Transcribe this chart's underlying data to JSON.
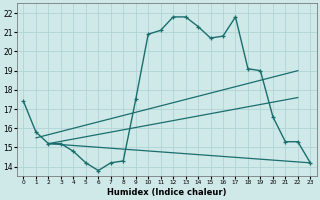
{
  "xlabel": "Humidex (Indice chaleur)",
  "xlim": [
    -0.5,
    23.5
  ],
  "ylim": [
    13.5,
    22.5
  ],
  "yticks": [
    14,
    15,
    16,
    17,
    18,
    19,
    20,
    21,
    22
  ],
  "xticks": [
    0,
    1,
    2,
    3,
    4,
    5,
    6,
    7,
    8,
    9,
    10,
    11,
    12,
    13,
    14,
    15,
    16,
    17,
    18,
    19,
    20,
    21,
    22,
    23
  ],
  "background_color": "#cfe8e8",
  "grid_color": "#b0d4d4",
  "line_color": "#1a6e6e",
  "main_x": [
    0,
    1,
    2,
    3,
    4,
    5,
    6,
    7,
    8,
    9,
    10,
    11,
    12,
    13,
    14,
    15,
    16,
    17,
    18,
    19,
    20,
    21,
    22,
    23
  ],
  "main_y": [
    17.4,
    15.8,
    15.2,
    15.2,
    14.8,
    14.2,
    13.8,
    14.2,
    14.3,
    17.5,
    20.9,
    21.1,
    21.8,
    21.8,
    21.3,
    20.7,
    20.8,
    21.8,
    19.1,
    19.0,
    16.6,
    15.3,
    15.3,
    14.2
  ],
  "trend1_x": [
    1,
    22
  ],
  "trend1_y": [
    15.5,
    19.0
  ],
  "trend2_x": [
    2,
    22
  ],
  "trend2_y": [
    15.2,
    17.6
  ],
  "trend3_x": [
    2,
    23
  ],
  "trend3_y": [
    15.2,
    14.2
  ]
}
